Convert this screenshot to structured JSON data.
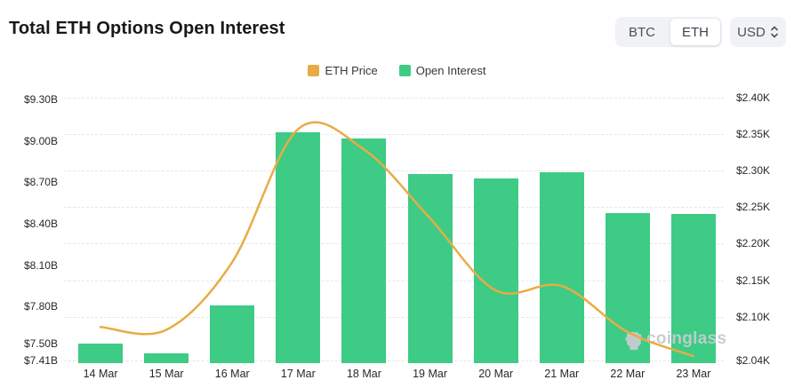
{
  "header": {
    "title": "Total ETH Options Open Interest",
    "coin_toggle": {
      "options": [
        "BTC",
        "ETH"
      ],
      "selected": "ETH"
    },
    "currency_select": {
      "value": "USD"
    }
  },
  "legend": {
    "items": [
      {
        "label": "ETH Price",
        "color": "#E8AC44"
      },
      {
        "label": "Open Interest",
        "color": "#3DCB85"
      }
    ]
  },
  "watermark": {
    "text": "coinglass"
  },
  "chart_data": {
    "type": "bar",
    "subtype": "bar+line combo with dual y-axes",
    "categories": [
      "14 Mar",
      "15 Mar",
      "16 Mar",
      "17 Mar",
      "18 Mar",
      "19 Mar",
      "20 Mar",
      "21 Mar",
      "22 Mar",
      "23 Mar"
    ],
    "series": [
      {
        "name": "Open Interest",
        "type": "bar",
        "axis": "left",
        "color": "#3DCB85",
        "unit": "USD billions",
        "values": [
          7.53,
          7.46,
          7.81,
          9.06,
          9.02,
          8.76,
          8.73,
          8.77,
          8.48,
          8.47
        ]
      },
      {
        "name": "ETH Price",
        "type": "line",
        "axis": "right",
        "color": "#E8AC44",
        "unit": "USD thousands",
        "values": [
          2.086,
          2.082,
          2.175,
          2.357,
          2.329,
          2.235,
          2.136,
          2.142,
          2.079,
          2.046
        ]
      }
    ],
    "left_axis": {
      "labels": [
        "$9.30B",
        "$9.00B",
        "$8.70B",
        "$8.40B",
        "$8.10B",
        "$7.80B",
        "$7.50B",
        "$7.41B"
      ],
      "ticks": [
        9.3,
        9.0,
        8.7,
        8.4,
        8.1,
        7.8,
        7.5,
        7.41
      ],
      "min": 7.41,
      "max": 9.3
    },
    "right_axis": {
      "labels": [
        "$2.40K",
        "$2.35K",
        "$2.30K",
        "$2.25K",
        "$2.20K",
        "$2.15K",
        "$2.10K",
        "$2.04K"
      ],
      "ticks": [
        2.4,
        2.35,
        2.3,
        2.25,
        2.2,
        2.15,
        2.1,
        2.04
      ],
      "min": 2.04,
      "max": 2.4
    },
    "grid": {
      "horizontal_lines": "dashed",
      "aligned_to": "right_axis"
    },
    "legend_position": "top-center",
    "title": "Total ETH Options Open Interest"
  }
}
